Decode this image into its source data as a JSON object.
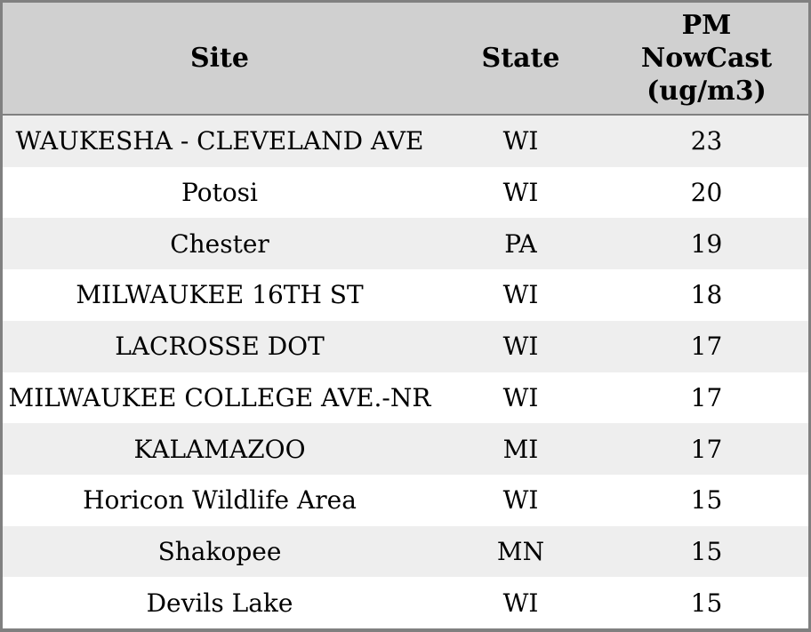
{
  "chart_data": {
    "type": "table",
    "columns": [
      "Site",
      "State",
      "PM NowCast (ug/m3)"
    ],
    "pm_header_lines": [
      "PM",
      "NowCast",
      "(ug/m3)"
    ],
    "rows": [
      [
        "WAUKESHA - CLEVELAND AVE",
        "WI",
        23
      ],
      [
        "Potosi",
        "WI",
        20
      ],
      [
        "Chester",
        "PA",
        19
      ],
      [
        "MILWAUKEE 16TH ST",
        "WI",
        18
      ],
      [
        "LACROSSE DOT",
        "WI",
        17
      ],
      [
        "MILWAUKEE COLLEGE AVE.-NR",
        "WI",
        17
      ],
      [
        "KALAMAZOO",
        "MI",
        17
      ],
      [
        "Horicon Wildlife Area",
        "WI",
        15
      ],
      [
        "Shakopee",
        "MN",
        15
      ],
      [
        "Devils Lake",
        "WI",
        15
      ]
    ]
  },
  "colors": {
    "header_bg": "#d0d0d0",
    "row_alt_bg": "#eeeeee",
    "row_bg": "#ffffff",
    "border": "#808080",
    "text": "#000000"
  }
}
